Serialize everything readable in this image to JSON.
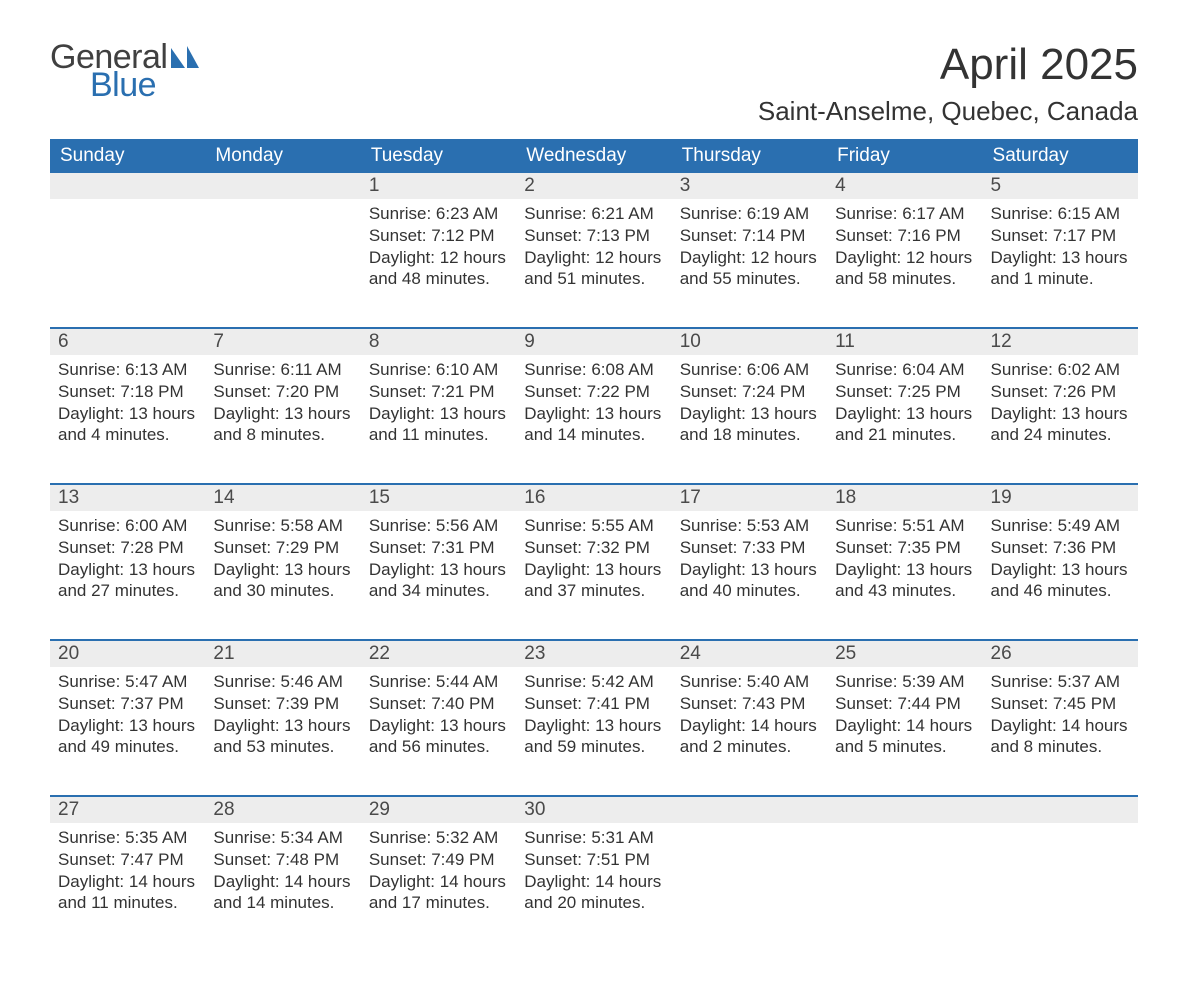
{
  "logo": {
    "line1": "General",
    "line2": "Blue",
    "color_text": "#404040",
    "color_blue": "#2a6fb0"
  },
  "title": "April 2025",
  "location": "Saint-Anselme, Quebec, Canada",
  "colors": {
    "header_bg": "#2a6fb0",
    "header_text": "#ffffff",
    "daynum_bg": "#ededed",
    "daynum_text": "#4a4a4a",
    "body_text": "#333333",
    "page_bg": "#ffffff",
    "week_sep": "#2a6fb0"
  },
  "typography": {
    "title_fontsize": 44,
    "location_fontsize": 26,
    "dayheader_fontsize": 19,
    "daynum_fontsize": 19,
    "body_fontsize": 17
  },
  "day_headers": [
    "Sunday",
    "Monday",
    "Tuesday",
    "Wednesday",
    "Thursday",
    "Friday",
    "Saturday"
  ],
  "weeks": [
    [
      null,
      null,
      {
        "n": "1",
        "sunrise": "6:23 AM",
        "sunset": "7:12 PM",
        "daylight": "12 hours and 48 minutes."
      },
      {
        "n": "2",
        "sunrise": "6:21 AM",
        "sunset": "7:13 PM",
        "daylight": "12 hours and 51 minutes."
      },
      {
        "n": "3",
        "sunrise": "6:19 AM",
        "sunset": "7:14 PM",
        "daylight": "12 hours and 55 minutes."
      },
      {
        "n": "4",
        "sunrise": "6:17 AM",
        "sunset": "7:16 PM",
        "daylight": "12 hours and 58 minutes."
      },
      {
        "n": "5",
        "sunrise": "6:15 AM",
        "sunset": "7:17 PM",
        "daylight": "13 hours and 1 minute."
      }
    ],
    [
      {
        "n": "6",
        "sunrise": "6:13 AM",
        "sunset": "7:18 PM",
        "daylight": "13 hours and 4 minutes."
      },
      {
        "n": "7",
        "sunrise": "6:11 AM",
        "sunset": "7:20 PM",
        "daylight": "13 hours and 8 minutes."
      },
      {
        "n": "8",
        "sunrise": "6:10 AM",
        "sunset": "7:21 PM",
        "daylight": "13 hours and 11 minutes."
      },
      {
        "n": "9",
        "sunrise": "6:08 AM",
        "sunset": "7:22 PM",
        "daylight": "13 hours and 14 minutes."
      },
      {
        "n": "10",
        "sunrise": "6:06 AM",
        "sunset": "7:24 PM",
        "daylight": "13 hours and 18 minutes."
      },
      {
        "n": "11",
        "sunrise": "6:04 AM",
        "sunset": "7:25 PM",
        "daylight": "13 hours and 21 minutes."
      },
      {
        "n": "12",
        "sunrise": "6:02 AM",
        "sunset": "7:26 PM",
        "daylight": "13 hours and 24 minutes."
      }
    ],
    [
      {
        "n": "13",
        "sunrise": "6:00 AM",
        "sunset": "7:28 PM",
        "daylight": "13 hours and 27 minutes."
      },
      {
        "n": "14",
        "sunrise": "5:58 AM",
        "sunset": "7:29 PM",
        "daylight": "13 hours and 30 minutes."
      },
      {
        "n": "15",
        "sunrise": "5:56 AM",
        "sunset": "7:31 PM",
        "daylight": "13 hours and 34 minutes."
      },
      {
        "n": "16",
        "sunrise": "5:55 AM",
        "sunset": "7:32 PM",
        "daylight": "13 hours and 37 minutes."
      },
      {
        "n": "17",
        "sunrise": "5:53 AM",
        "sunset": "7:33 PM",
        "daylight": "13 hours and 40 minutes."
      },
      {
        "n": "18",
        "sunrise": "5:51 AM",
        "sunset": "7:35 PM",
        "daylight": "13 hours and 43 minutes."
      },
      {
        "n": "19",
        "sunrise": "5:49 AM",
        "sunset": "7:36 PM",
        "daylight": "13 hours and 46 minutes."
      }
    ],
    [
      {
        "n": "20",
        "sunrise": "5:47 AM",
        "sunset": "7:37 PM",
        "daylight": "13 hours and 49 minutes."
      },
      {
        "n": "21",
        "sunrise": "5:46 AM",
        "sunset": "7:39 PM",
        "daylight": "13 hours and 53 minutes."
      },
      {
        "n": "22",
        "sunrise": "5:44 AM",
        "sunset": "7:40 PM",
        "daylight": "13 hours and 56 minutes."
      },
      {
        "n": "23",
        "sunrise": "5:42 AM",
        "sunset": "7:41 PM",
        "daylight": "13 hours and 59 minutes."
      },
      {
        "n": "24",
        "sunrise": "5:40 AM",
        "sunset": "7:43 PM",
        "daylight": "14 hours and 2 minutes."
      },
      {
        "n": "25",
        "sunrise": "5:39 AM",
        "sunset": "7:44 PM",
        "daylight": "14 hours and 5 minutes."
      },
      {
        "n": "26",
        "sunrise": "5:37 AM",
        "sunset": "7:45 PM",
        "daylight": "14 hours and 8 minutes."
      }
    ],
    [
      {
        "n": "27",
        "sunrise": "5:35 AM",
        "sunset": "7:47 PM",
        "daylight": "14 hours and 11 minutes."
      },
      {
        "n": "28",
        "sunrise": "5:34 AM",
        "sunset": "7:48 PM",
        "daylight": "14 hours and 14 minutes."
      },
      {
        "n": "29",
        "sunrise": "5:32 AM",
        "sunset": "7:49 PM",
        "daylight": "14 hours and 17 minutes."
      },
      {
        "n": "30",
        "sunrise": "5:31 AM",
        "sunset": "7:51 PM",
        "daylight": "14 hours and 20 minutes."
      },
      null,
      null,
      null
    ]
  ],
  "labels": {
    "sunrise": "Sunrise: ",
    "sunset": "Sunset: ",
    "daylight": "Daylight: "
  }
}
